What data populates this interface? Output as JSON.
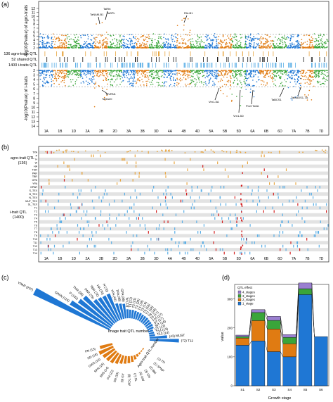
{
  "panels": {
    "a": "(a)",
    "b": "(b)",
    "c": "(c)",
    "d": "(d)"
  },
  "chromosomes": [
    "1A",
    "1B",
    "1D",
    "2A",
    "2B",
    "2D",
    "3A",
    "3B",
    "3D",
    "4A",
    "4B",
    "4D",
    "5A",
    "5B",
    "5D",
    "6A",
    "6B",
    "6D",
    "7A",
    "7B",
    "7D"
  ],
  "colors": {
    "blue": "#1f77d4",
    "orange": "#e07b12",
    "green": "#3aa53a",
    "agro_orange": "#e8a640",
    "itrait_blue": "#5aaee6",
    "shared_red": "#d42020",
    "purple": "#9a7fd0",
    "grey_row": "#e3e3e3"
  },
  "chart_data": [
    {
      "type": "scatter",
      "panel": "a",
      "subtype": "mirrored manhattan",
      "top_ylabel": "-log10(Pvalue) of agro-traits",
      "bottom_ylabel": "-log10(Pvalue) of i-traits",
      "top_yticks": [
        2,
        3,
        4,
        5,
        6,
        7,
        8,
        9,
        10,
        11,
        12
      ],
      "bottom_yticks": [
        2,
        3,
        4,
        5,
        6,
        7,
        8,
        9,
        10,
        11,
        12,
        13,
        14
      ],
      "track_labels": [
        "136 agro-traits QTL",
        "52 shared QTL",
        "1400 i-traits QTL"
      ],
      "annotations_top": [
        "TaNAM-B1",
        "TaRht",
        "TaSPL",
        "Rht-B1"
      ],
      "annotations_bottom": [
        "TaVRN1",
        "TaGA20",
        "Vrn1-5A",
        "Vrn1-5D",
        "Pm3 Ta5A",
        "TaBCS1",
        "TaMADS1-7A"
      ]
    },
    {
      "type": "scatter",
      "panel": "b",
      "group_labels": [
        "agro-trait QTL",
        "(136)",
        "i-trait QTL",
        "(1400)"
      ],
      "agro_rows": [
        "TPA",
        "P",
        "H",
        "W",
        "HA",
        "THR",
        "PAR",
        "TBR",
        "GPA",
        "YPA"
      ],
      "itrait_rows": [
        "GPAR",
        "S_TEX",
        "B_TEX",
        "N_TEX",
        "MUT_TEX",
        "SL_TEX",
        "T1",
        "T2",
        "T3",
        "T4",
        "T5",
        "T6",
        "T7",
        "T8",
        "T9",
        "T10",
        "T11",
        "T12",
        "T13",
        "T14"
      ]
    },
    {
      "type": "bar",
      "panel": "c",
      "subtype": "radial",
      "inner_label_top": "Image trait QTL number",
      "inner_label_bottom": "Agro-trait QTL number",
      "image_trait_qtl": [
        {
          "label": "YPAR (207)",
          "value": 207
        },
        {
          "label": "GPAN (116)",
          "value": 116
        },
        {
          "label": "P (102)",
          "value": 102
        },
        {
          "label": "THR (98)",
          "value": 98
        },
        {
          "label": "PAR (75)",
          "value": 75
        },
        {
          "label": "TBR (72)",
          "value": 72
        },
        {
          "label": "HA (70)",
          "value": 70
        },
        {
          "label": "H (70)",
          "value": 70
        },
        {
          "label": "YPA (41)",
          "value": 41
        },
        {
          "label": "TPA (38)",
          "value": 38
        },
        {
          "label": "GPA (36)",
          "value": 36
        },
        {
          "label": "W (22)",
          "value": 22
        },
        {
          "label": "T1 (21)",
          "value": 21
        },
        {
          "label": "T2 (21)",
          "value": 21
        },
        {
          "label": "T3 (20)",
          "value": 20
        },
        {
          "label": "T4 (19)",
          "value": 19
        },
        {
          "label": "T5 (19)",
          "value": 19
        },
        {
          "label": "T6 (18)",
          "value": 18
        },
        {
          "label": "T7 (18)",
          "value": 18
        },
        {
          "label": "T8 (18)",
          "value": 18
        },
        {
          "label": "T9 (17)",
          "value": 17
        },
        {
          "label": "T10 (17)",
          "value": 17
        },
        {
          "label": "ST (17)",
          "value": 17
        },
        {
          "label": "SIT (16)",
          "value": 16
        },
        {
          "label": "GT (12)",
          "value": 12
        },
        {
          "label": "T14 (13)",
          "value": 13
        },
        {
          "label": "T13 (14)",
          "value": 14
        },
        {
          "label": "(43) MUST",
          "value": 43
        },
        {
          "label": "(72) T12",
          "value": 72
        }
      ],
      "agro_trait_qtl": [
        {
          "label": "(1) TN",
          "value": 1
        },
        {
          "label": "(1) SPNP",
          "value": 1
        },
        {
          "label": "(2) BM",
          "value": 2
        },
        {
          "label": "(3) GN",
          "value": 3
        },
        {
          "label": "(5) GW",
          "value": 5
        },
        {
          "label": "(7) SL",
          "value": 7
        },
        {
          "label": "(8) TGW",
          "value": 8
        },
        {
          "label": "(9) GY",
          "value": 9
        },
        {
          "label": "SN (10)",
          "value": 10
        },
        {
          "label": "PH (12)",
          "value": 12
        },
        {
          "label": "SNS (14)",
          "value": 14
        },
        {
          "label": "SPN (15)",
          "value": 15
        },
        {
          "label": "GWS (16)",
          "value": 16
        },
        {
          "label": "HD (18)",
          "value": 18
        },
        {
          "label": "PN (15)",
          "value": 15
        }
      ]
    },
    {
      "type": "bar",
      "panel": "d",
      "subtype": "stacked",
      "xlabel": "Growth stage",
      "ylabel": "value",
      "categories": [
        "S1",
        "S2",
        "S3",
        "S4",
        "S5",
        "S6"
      ],
      "ylim": [
        0,
        350
      ],
      "yticks": [
        0,
        100,
        200,
        300
      ],
      "legend_title": "QTL effect",
      "legend_position": "top-left",
      "series": [
        {
          "name": "1_stage",
          "values": [
            140,
            155,
            118,
            100,
            315,
            170
          ]
        },
        {
          "name": "2_stages",
          "values": [
            25,
            70,
            78,
            45,
            0,
            0
          ]
        },
        {
          "name": "3_stages",
          "values": [
            5,
            28,
            30,
            22,
            20,
            0
          ]
        },
        {
          "name": "4_stages",
          "values": [
            5,
            10,
            14,
            10,
            20,
            0
          ]
        }
      ]
    }
  ]
}
